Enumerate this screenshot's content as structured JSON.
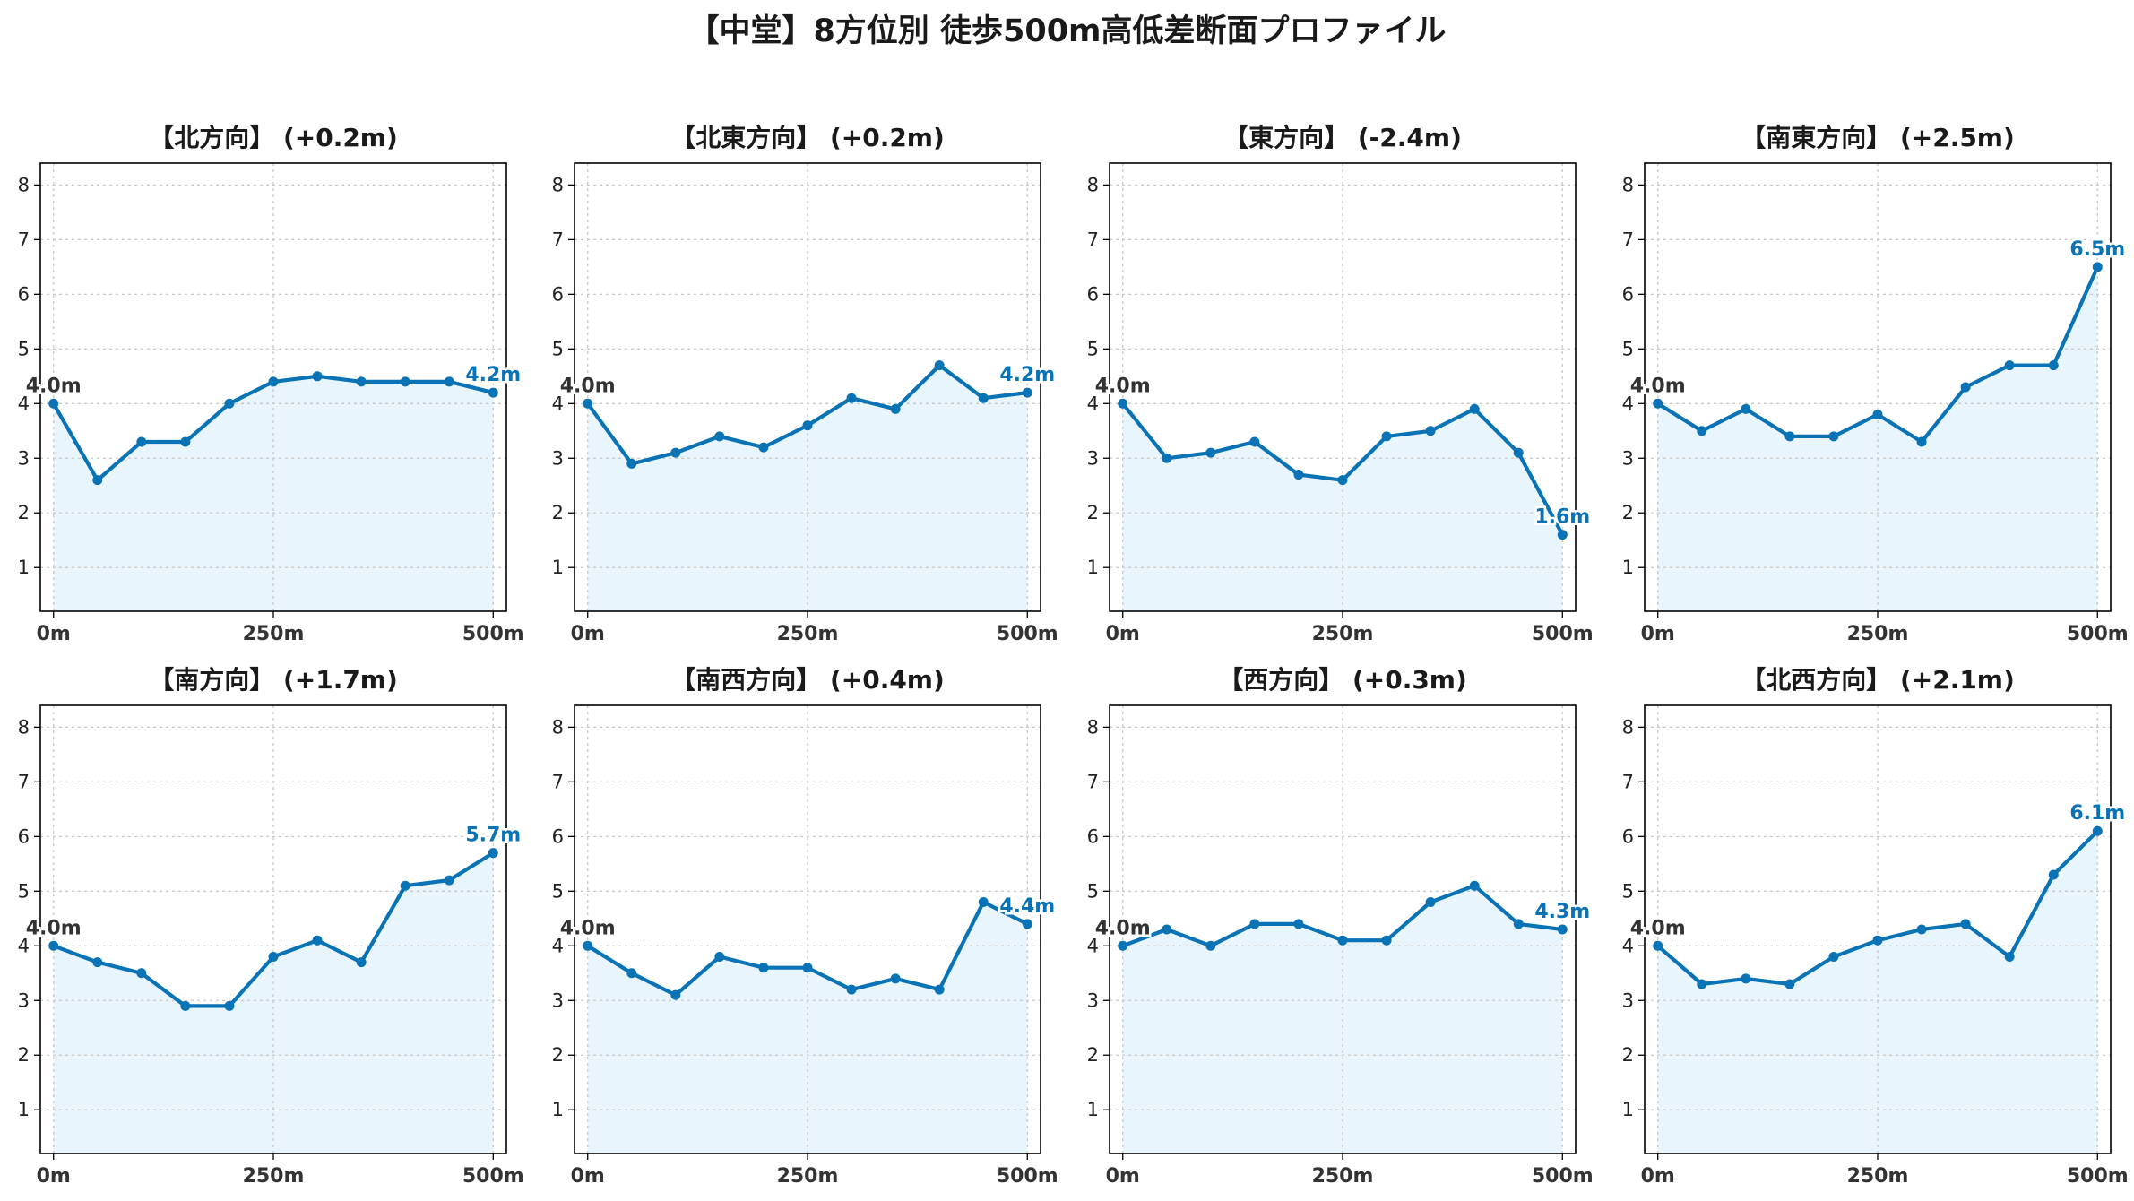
{
  "title": "【中堂】8方位別 徒歩500m高低差断面プロファイル",
  "colors": {
    "line": "#0a73b5",
    "fill": "#e8f5fc",
    "grid": "#c8c8c8",
    "start_label": "#333333",
    "end_label": "#0a73b5"
  },
  "chart_data": [
    {
      "type": "area",
      "title": "【北方向】 (+0.2m)",
      "x": [
        0,
        50,
        100,
        150,
        200,
        250,
        300,
        350,
        400,
        450,
        500
      ],
      "x_ticks": [
        "0m",
        "250m",
        "500m"
      ],
      "x_tick_values": [
        0,
        250,
        500
      ],
      "y_ticks": [
        1,
        2,
        3,
        4,
        5,
        6,
        7,
        8
      ],
      "ylim": [
        0.2,
        8.4
      ],
      "xlim": [
        -15,
        515
      ],
      "values": [
        4.0,
        2.6,
        3.3,
        3.3,
        4.0,
        4.4,
        4.5,
        4.4,
        4.4,
        4.4,
        4.2
      ],
      "start_label": "4.0m",
      "end_label": "4.2m",
      "grid": true
    },
    {
      "type": "area",
      "title": "【北東方向】 (+0.2m)",
      "x": [
        0,
        50,
        100,
        150,
        200,
        250,
        300,
        350,
        400,
        450,
        500
      ],
      "x_ticks": [
        "0m",
        "250m",
        "500m"
      ],
      "x_tick_values": [
        0,
        250,
        500
      ],
      "y_ticks": [
        1,
        2,
        3,
        4,
        5,
        6,
        7,
        8
      ],
      "ylim": [
        0.2,
        8.4
      ],
      "xlim": [
        -15,
        515
      ],
      "values": [
        4.0,
        2.9,
        3.1,
        3.4,
        3.2,
        3.6,
        4.1,
        3.9,
        4.7,
        4.1,
        4.2
      ],
      "start_label": "4.0m",
      "end_label": "4.2m",
      "grid": true
    },
    {
      "type": "area",
      "title": "【東方向】 (-2.4m)",
      "x": [
        0,
        50,
        100,
        150,
        200,
        250,
        300,
        350,
        400,
        450,
        500
      ],
      "x_ticks": [
        "0m",
        "250m",
        "500m"
      ],
      "x_tick_values": [
        0,
        250,
        500
      ],
      "y_ticks": [
        1,
        2,
        3,
        4,
        5,
        6,
        7,
        8
      ],
      "ylim": [
        0.2,
        8.4
      ],
      "xlim": [
        -15,
        515
      ],
      "values": [
        4.0,
        3.0,
        3.1,
        3.3,
        2.7,
        2.6,
        3.4,
        3.5,
        3.9,
        3.1,
        1.6
      ],
      "start_label": "4.0m",
      "end_label": "1.6m",
      "grid": true
    },
    {
      "type": "area",
      "title": "【南東方向】 (+2.5m)",
      "x": [
        0,
        50,
        100,
        150,
        200,
        250,
        300,
        350,
        400,
        450,
        500
      ],
      "x_ticks": [
        "0m",
        "250m",
        "500m"
      ],
      "x_tick_values": [
        0,
        250,
        500
      ],
      "y_ticks": [
        1,
        2,
        3,
        4,
        5,
        6,
        7,
        8
      ],
      "ylim": [
        0.2,
        8.4
      ],
      "xlim": [
        -15,
        515
      ],
      "values": [
        4.0,
        3.5,
        3.9,
        3.4,
        3.4,
        3.8,
        3.3,
        4.3,
        4.7,
        4.7,
        6.5
      ],
      "start_label": "4.0m",
      "end_label": "6.5m",
      "grid": true
    },
    {
      "type": "area",
      "title": "【南方向】 (+1.7m)",
      "x": [
        0,
        50,
        100,
        150,
        200,
        250,
        300,
        350,
        400,
        450,
        500
      ],
      "x_ticks": [
        "0m",
        "250m",
        "500m"
      ],
      "x_tick_values": [
        0,
        250,
        500
      ],
      "y_ticks": [
        1,
        2,
        3,
        4,
        5,
        6,
        7,
        8
      ],
      "ylim": [
        0.2,
        8.4
      ],
      "xlim": [
        -15,
        515
      ],
      "values": [
        4.0,
        3.7,
        3.5,
        2.9,
        2.9,
        3.8,
        4.1,
        3.7,
        5.1,
        5.2,
        5.7
      ],
      "start_label": "4.0m",
      "end_label": "5.7m",
      "grid": true
    },
    {
      "type": "area",
      "title": "【南西方向】 (+0.4m)",
      "x": [
        0,
        50,
        100,
        150,
        200,
        250,
        300,
        350,
        400,
        450,
        500
      ],
      "x_ticks": [
        "0m",
        "250m",
        "500m"
      ],
      "x_tick_values": [
        0,
        250,
        500
      ],
      "y_ticks": [
        1,
        2,
        3,
        4,
        5,
        6,
        7,
        8
      ],
      "ylim": [
        0.2,
        8.4
      ],
      "xlim": [
        -15,
        515
      ],
      "values": [
        4.0,
        3.5,
        3.1,
        3.8,
        3.6,
        3.6,
        3.2,
        3.4,
        3.2,
        4.8,
        4.4
      ],
      "start_label": "4.0m",
      "end_label": "4.4m",
      "grid": true
    },
    {
      "type": "area",
      "title": "【西方向】 (+0.3m)",
      "x": [
        0,
        50,
        100,
        150,
        200,
        250,
        300,
        350,
        400,
        450,
        500
      ],
      "x_ticks": [
        "0m",
        "250m",
        "500m"
      ],
      "x_tick_values": [
        0,
        250,
        500
      ],
      "y_ticks": [
        1,
        2,
        3,
        4,
        5,
        6,
        7,
        8
      ],
      "ylim": [
        0.2,
        8.4
      ],
      "xlim": [
        -15,
        515
      ],
      "values": [
        4.0,
        4.3,
        4.0,
        4.4,
        4.4,
        4.1,
        4.1,
        4.8,
        5.1,
        4.4,
        4.3
      ],
      "start_label": "4.0m",
      "end_label": "4.3m",
      "grid": true
    },
    {
      "type": "area",
      "title": "【北西方向】 (+2.1m)",
      "x": [
        0,
        50,
        100,
        150,
        200,
        250,
        300,
        350,
        400,
        450,
        500
      ],
      "x_ticks": [
        "0m",
        "250m",
        "500m"
      ],
      "x_tick_values": [
        0,
        250,
        500
      ],
      "y_ticks": [
        1,
        2,
        3,
        4,
        5,
        6,
        7,
        8
      ],
      "ylim": [
        0.2,
        8.4
      ],
      "xlim": [
        -15,
        515
      ],
      "values": [
        4.0,
        3.3,
        3.4,
        3.3,
        3.8,
        4.1,
        4.3,
        4.4,
        3.8,
        5.3,
        6.1
      ],
      "start_label": "4.0m",
      "end_label": "6.1m",
      "grid": true
    }
  ]
}
